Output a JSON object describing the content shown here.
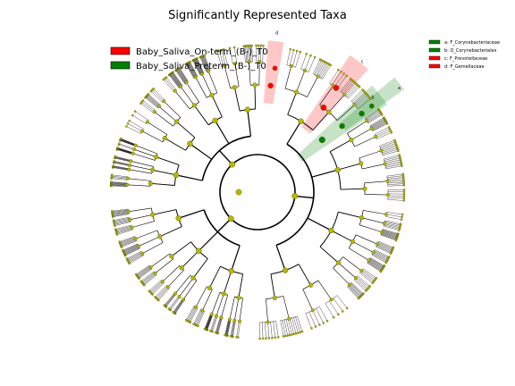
{
  "title": "Significantly Represented Taxa",
  "legend": [
    {
      "label": "Baby_Saliva_On-term_(B-)_T0",
      "color": "#ff0000"
    },
    {
      "label": "Baby_Saliva_Preterm_(B-)_T0",
      "color": "#008000"
    }
  ],
  "clade_legend": [
    {
      "label": "a: F_Corynebacteriaceae",
      "color": "#008000"
    },
    {
      "label": "b: O_Corynebacteriales",
      "color": "#008000"
    },
    {
      "label": "c: F_Prevotellaceae",
      "color": "#ff0000"
    },
    {
      "label": "d: F_Gemellaceae",
      "color": "#ff0000"
    }
  ],
  "clade_letters": [
    {
      "letter": "a",
      "color": "#008000"
    },
    {
      "letter": "b",
      "color": "#008000"
    },
    {
      "letter": "c",
      "color": "#ff0000"
    },
    {
      "letter": "d",
      "color": "#ff0000"
    }
  ],
  "colors": {
    "node": "#b5b800",
    "node_edge": "#555500",
    "line": "#000000",
    "on_term": "#ff0000",
    "preterm": "#008000"
  }
}
